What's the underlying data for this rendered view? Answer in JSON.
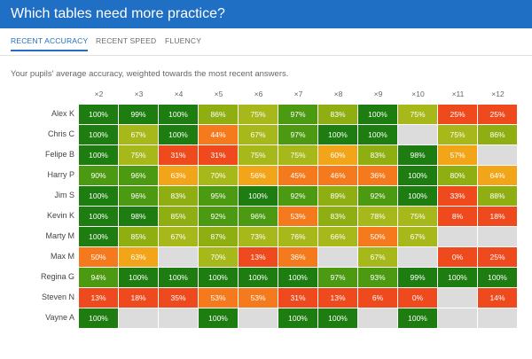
{
  "header": {
    "title": "Which tables need more practice?"
  },
  "tabs": [
    {
      "label": "RECENT ACCURACY",
      "active": true
    },
    {
      "label": "RECENT SPEED",
      "active": false
    },
    {
      "label": "FLUENCY",
      "active": false
    }
  ],
  "subtitle": "Your pupils' average accuracy, weighted towards the most recent answers.",
  "columns": [
    "×2",
    "×3",
    "×4",
    "×5",
    "×6",
    "×7",
    "×8",
    "×9",
    "×10",
    "×11",
    "×12"
  ],
  "rows": [
    {
      "name": "Alex K",
      "values": [
        100,
        99,
        100,
        86,
        75,
        97,
        83,
        100,
        75,
        25,
        25
      ]
    },
    {
      "name": "Chris C",
      "values": [
        100,
        67,
        100,
        44,
        67,
        97,
        100,
        100,
        null,
        75,
        86
      ]
    },
    {
      "name": "Felipe B",
      "values": [
        100,
        75,
        31,
        31,
        75,
        75,
        60,
        83,
        98,
        57,
        null
      ]
    },
    {
      "name": "Harry P",
      "values": [
        90,
        96,
        63,
        70,
        56,
        45,
        46,
        36,
        100,
        80,
        64
      ]
    },
    {
      "name": "Jim S",
      "values": [
        100,
        96,
        83,
        95,
        100,
        92,
        89,
        92,
        100,
        33,
        88
      ]
    },
    {
      "name": "Kevin K",
      "values": [
        100,
        98,
        85,
        92,
        96,
        53,
        83,
        78,
        75,
        8,
        18
      ]
    },
    {
      "name": "Marty M",
      "values": [
        100,
        85,
        67,
        87,
        73,
        76,
        66,
        50,
        67,
        null,
        null
      ]
    },
    {
      "name": "Max M",
      "values": [
        50,
        63,
        null,
        70,
        13,
        36,
        null,
        67,
        null,
        0,
        25
      ]
    },
    {
      "name": "Regina G",
      "values": [
        94,
        100,
        100,
        100,
        100,
        100,
        97,
        93,
        99,
        100,
        100
      ]
    },
    {
      "name": "Steven N",
      "values": [
        13,
        18,
        35,
        53,
        53,
        31,
        13,
        6,
        0,
        null,
        14
      ]
    },
    {
      "name": "Vayne A",
      "values": [
        100,
        null,
        null,
        100,
        null,
        100,
        100,
        null,
        100,
        null,
        null
      ]
    }
  ],
  "colors": {
    "header": "#1f6fc4",
    "dark_green": "#1e7d10",
    "green": "#4c9a12",
    "olive": "#8fae12",
    "yellow_green": "#a7b81a",
    "amber": "#f3a51a",
    "orange": "#f57a1e",
    "red_orange": "#ef4a1e",
    "empty": "#dcdcdc"
  }
}
